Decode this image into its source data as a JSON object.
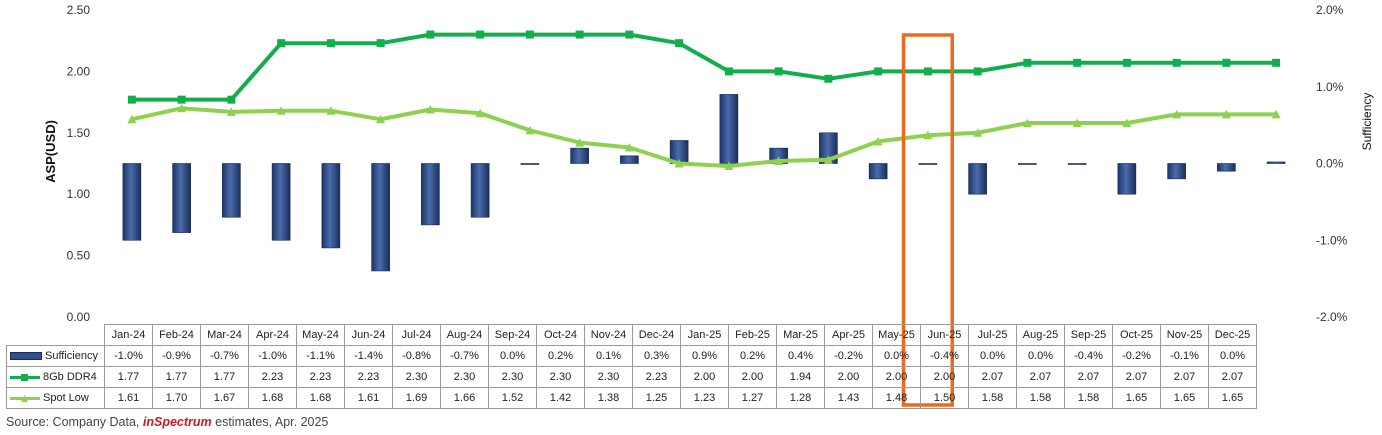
{
  "chart_data": {
    "type": "bar",
    "categories": [
      "Jan-24",
      "Feb-24",
      "Mar-24",
      "Apr-24",
      "May-24",
      "Jun-24",
      "Jul-24",
      "Aug-24",
      "Sep-24",
      "Oct-24",
      "Nov-24",
      "Dec-24",
      "Jan-25",
      "Feb-25",
      "Mar-25",
      "Apr-25",
      "May-25",
      "Jun-25",
      "Jul-25",
      "Aug-25",
      "Sep-25",
      "Oct-25",
      "Nov-25",
      "Dec-25"
    ],
    "series": [
      {
        "name": "Sufficiency",
        "type": "bar",
        "axis": "right",
        "values": [
          -1.0,
          -0.9,
          -0.7,
          -1.0,
          -1.1,
          -1.4,
          -0.8,
          -0.7,
          0.0,
          0.2,
          0.1,
          0.3,
          0.9,
          0.2,
          0.4,
          -0.2,
          0.0,
          -0.4,
          0.0,
          0.0,
          -0.4,
          -0.2,
          -0.1,
          0.0
        ],
        "plot_values": [
          -1.0,
          -0.9,
          -0.7,
          -1.0,
          -1.1,
          -1.4,
          -0.8,
          -0.7,
          0.0,
          0.2,
          0.1,
          0.3,
          0.9,
          0.2,
          0.4,
          -0.2,
          0.0,
          -0.4,
          0.0,
          0.0,
          -0.4,
          -0.2,
          -0.1,
          0.02
        ],
        "labels": [
          "-1.0%",
          "-0.9%",
          "-0.7%",
          "-1.0%",
          "-1.1%",
          "-1.4%",
          "-0.8%",
          "-0.7%",
          "0.0%",
          "0.2%",
          "0.1%",
          "0.3%",
          "0.9%",
          "0.2%",
          "0.4%",
          "-0.2%",
          "0.0%",
          "-0.4%",
          "0.0%",
          "0.0%",
          "-0.4%",
          "-0.2%",
          "-0.1%",
          "0.0%"
        ],
        "color": "#2f4f8f"
      },
      {
        "name": "8Gb DDR4",
        "type": "line",
        "axis": "left",
        "values": [
          1.77,
          1.77,
          1.77,
          2.23,
          2.23,
          2.23,
          2.3,
          2.3,
          2.3,
          2.3,
          2.3,
          2.23,
          2.0,
          2.0,
          1.94,
          2.0,
          2.0,
          2.0,
          2.07,
          2.07,
          2.07,
          2.07,
          2.07,
          2.07
        ],
        "color": "#12ae4c"
      },
      {
        "name": "Spot Low",
        "type": "line",
        "axis": "left",
        "values": [
          1.61,
          1.7,
          1.67,
          1.68,
          1.68,
          1.61,
          1.69,
          1.66,
          1.52,
          1.42,
          1.38,
          1.25,
          1.23,
          1.27,
          1.28,
          1.43,
          1.48,
          1.5,
          1.58,
          1.58,
          1.58,
          1.65,
          1.65,
          1.65
        ],
        "color": "#8ed151"
      }
    ],
    "ylabel": "ASP(USD)",
    "ylim": [
      0,
      2.5
    ],
    "yticks": [
      "0.00",
      "0.50",
      "1.00",
      "1.50",
      "2.00",
      "2.50"
    ],
    "y2label": "Sufficiency",
    "y2lim": [
      -2.0,
      2.0
    ],
    "y2ticks": [
      "-2.0%",
      "-1.0%",
      "0.0%",
      "1.0%",
      "2.0%"
    ],
    "highlight": {
      "category": "May-25",
      "color": "#ee6a1a"
    },
    "grid": false,
    "legend": "data-table"
  },
  "table": {
    "rows": [
      {
        "label": "Sufficiency",
        "key": "bar",
        "cells": [
          "-1.0%",
          "-0.9%",
          "-0.7%",
          "-1.0%",
          "-1.1%",
          "-1.4%",
          "-0.8%",
          "-0.7%",
          "0.0%",
          "0.2%",
          "0.1%",
          "0.3%",
          "0.9%",
          "0.2%",
          "0.4%",
          "-0.2%",
          "0.0%",
          "-0.4%",
          "0.0%",
          "0.0%",
          "-0.4%",
          "-0.2%",
          "-0.1%",
          "0.0%"
        ]
      },
      {
        "label": "8Gb DDR4",
        "key": "line-dark",
        "cells": [
          "1.77",
          "1.77",
          "1.77",
          "2.23",
          "2.23",
          "2.23",
          "2.30",
          "2.30",
          "2.30",
          "2.30",
          "2.30",
          "2.23",
          "2.00",
          "2.00",
          "1.94",
          "2.00",
          "2.00",
          "2.00",
          "2.07",
          "2.07",
          "2.07",
          "2.07",
          "2.07",
          "2.07"
        ]
      },
      {
        "label": "Spot Low",
        "key": "line-light",
        "cells": [
          "1.61",
          "1.70",
          "1.67",
          "1.68",
          "1.68",
          "1.61",
          "1.69",
          "1.66",
          "1.52",
          "1.42",
          "1.38",
          "1.25",
          "1.23",
          "1.27",
          "1.28",
          "1.43",
          "1.48",
          "1.50",
          "1.58",
          "1.58",
          "1.58",
          "1.65",
          "1.65",
          "1.65"
        ]
      }
    ]
  },
  "source": {
    "prefix": "Source: Company Data, ",
    "brand": "inSpectrum",
    "suffix": " estimates, Apr. 2025"
  }
}
